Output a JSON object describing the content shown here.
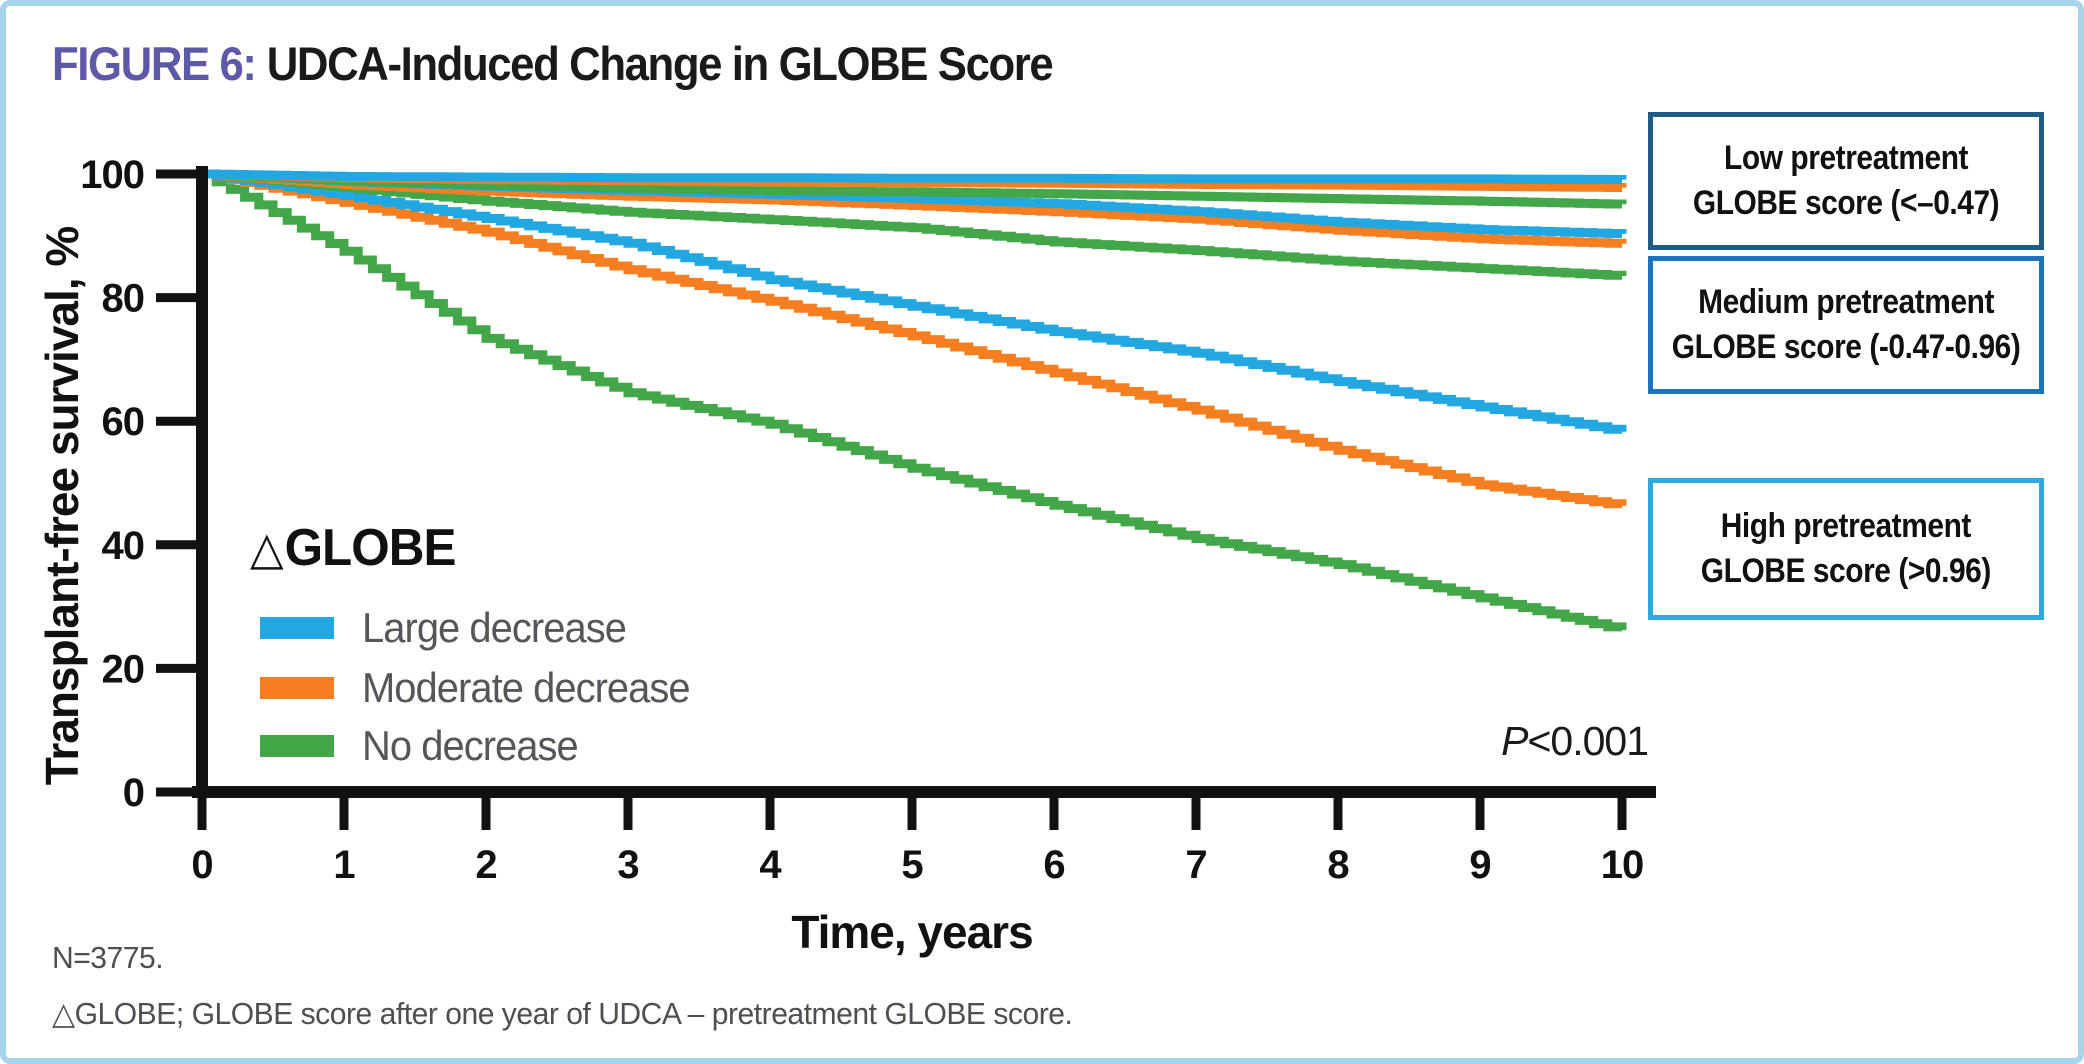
{
  "header": {
    "figure_label": "FIGURE 6:",
    "title": "UDCA-Induced Change in GLOBE Score"
  },
  "colors": {
    "blue": "#22A7E0",
    "orange": "#F57F20",
    "green": "#43A648",
    "title_accent": "#5C59A7",
    "axis": "#111111",
    "gray_text": "#54565A",
    "panel_border": "#A8D3ED",
    "box_low_border": "#1F5C85",
    "box_medium_border": "#1C75BC",
    "box_high_border": "#2BA9E1"
  },
  "legend": {
    "heading_symbol": "△",
    "heading_text": "GLOBE",
    "items": [
      {
        "label": "Large decrease",
        "color": "blue"
      },
      {
        "label": "Moderate decrease",
        "color": "orange"
      },
      {
        "label": "No decrease",
        "color": "green"
      }
    ]
  },
  "side_boxes": [
    {
      "id": "low",
      "line1": "Low pretreatment",
      "line2": "GLOBE score (<–0.47)"
    },
    {
      "id": "medium",
      "line1": "Medium pretreatment",
      "line2": "GLOBE score (-0.47-0.96)"
    },
    {
      "id": "high",
      "line1": "High pretreatment",
      "line2": "GLOBE score (>0.96)"
    }
  ],
  "footnotes": {
    "n": "N=3775.",
    "delta": "△GLOBE; GLOBE score after one year of UDCA – pretreatment GLOBE score."
  },
  "chart_data": {
    "type": "line",
    "subtype": "kaplan-meier-step",
    "title": "UDCA-Induced Change in GLOBE Score",
    "xlabel": "Time, years",
    "ylabel": "Transplant-free survival, %",
    "xlim": [
      0,
      10
    ],
    "ylim": [
      0,
      100
    ],
    "xticks": [
      0,
      1,
      2,
      3,
      4,
      5,
      6,
      7,
      8,
      9,
      10
    ],
    "yticks": [
      0,
      20,
      40,
      60,
      80,
      100
    ],
    "grid": false,
    "legend_position": "lower-left",
    "p_value_italic": "P",
    "p_value_rest": "<0.001",
    "years": [
      0,
      1,
      2,
      3,
      4,
      5,
      6,
      7,
      8,
      9,
      10
    ],
    "series": [
      {
        "id": "low_large",
        "group": "Low pretreatment GLOBE score (<-0.47)",
        "label": "Large decrease",
        "color": "blue",
        "values": [
          100,
          99.6,
          99.5,
          99.4,
          99.4,
          99.3,
          99.3,
          99.2,
          99.2,
          99.2,
          99.1
        ]
      },
      {
        "id": "low_moderate",
        "group": "Low pretreatment GLOBE score (<-0.47)",
        "label": "Moderate decrease",
        "color": "orange",
        "values": [
          100,
          99.4,
          99.1,
          98.9,
          98.7,
          98.6,
          98.5,
          98.3,
          98.2,
          98.0,
          97.8
        ]
      },
      {
        "id": "low_no",
        "group": "Low pretreatment GLOBE score (<-0.47)",
        "label": "No decrease",
        "color": "green",
        "values": [
          100,
          98.9,
          98.2,
          97.7,
          97.3,
          97.1,
          96.8,
          96.4,
          96.0,
          95.6,
          95.1
        ]
      },
      {
        "id": "medium_large",
        "group": "Medium pretreatment GLOBE score (-0.47-0.96)",
        "label": "Large decrease",
        "color": "blue",
        "values": [
          100,
          98.8,
          98.0,
          97.3,
          96.7,
          96.0,
          95.2,
          93.9,
          92.2,
          91.0,
          90.3
        ]
      },
      {
        "id": "medium_moderate",
        "group": "Medium pretreatment GLOBE score (-0.47-0.96)",
        "label": "Moderate decrease",
        "color": "orange",
        "values": [
          100,
          98.3,
          97.2,
          96.4,
          95.8,
          94.9,
          93.9,
          92.7,
          90.9,
          89.5,
          88.7
        ]
      },
      {
        "id": "medium_no",
        "group": "Medium pretreatment GLOBE score (-0.47-0.96)",
        "label": "No decrease",
        "color": "green",
        "values": [
          100,
          97.8,
          95.6,
          93.8,
          92.6,
          91.3,
          89.0,
          87.6,
          85.9,
          84.7,
          83.5
        ]
      },
      {
        "id": "high_large",
        "group": "High pretreatment GLOBE score (>0.96)",
        "label": "Large decrease",
        "color": "blue",
        "values": [
          100,
          96.5,
          92.8,
          88.8,
          82.9,
          78.6,
          74.5,
          71.0,
          66.4,
          62.3,
          58.3
        ]
      },
      {
        "id": "high_moderate",
        "group": "High pretreatment GLOBE score (>0.96)",
        "label": "Moderate decrease",
        "color": "orange",
        "values": [
          100,
          95.4,
          90.6,
          84.5,
          79.4,
          73.8,
          67.8,
          61.8,
          55.3,
          49.7,
          46.3
        ]
      },
      {
        "id": "high_no",
        "group": "High pretreatment GLOBE score (>0.96)",
        "label": "No decrease",
        "color": "green",
        "values": [
          100,
          87.5,
          73.4,
          64.6,
          59.5,
          52.4,
          46.4,
          41.0,
          36.8,
          31.4,
          26.2
        ]
      }
    ]
  }
}
